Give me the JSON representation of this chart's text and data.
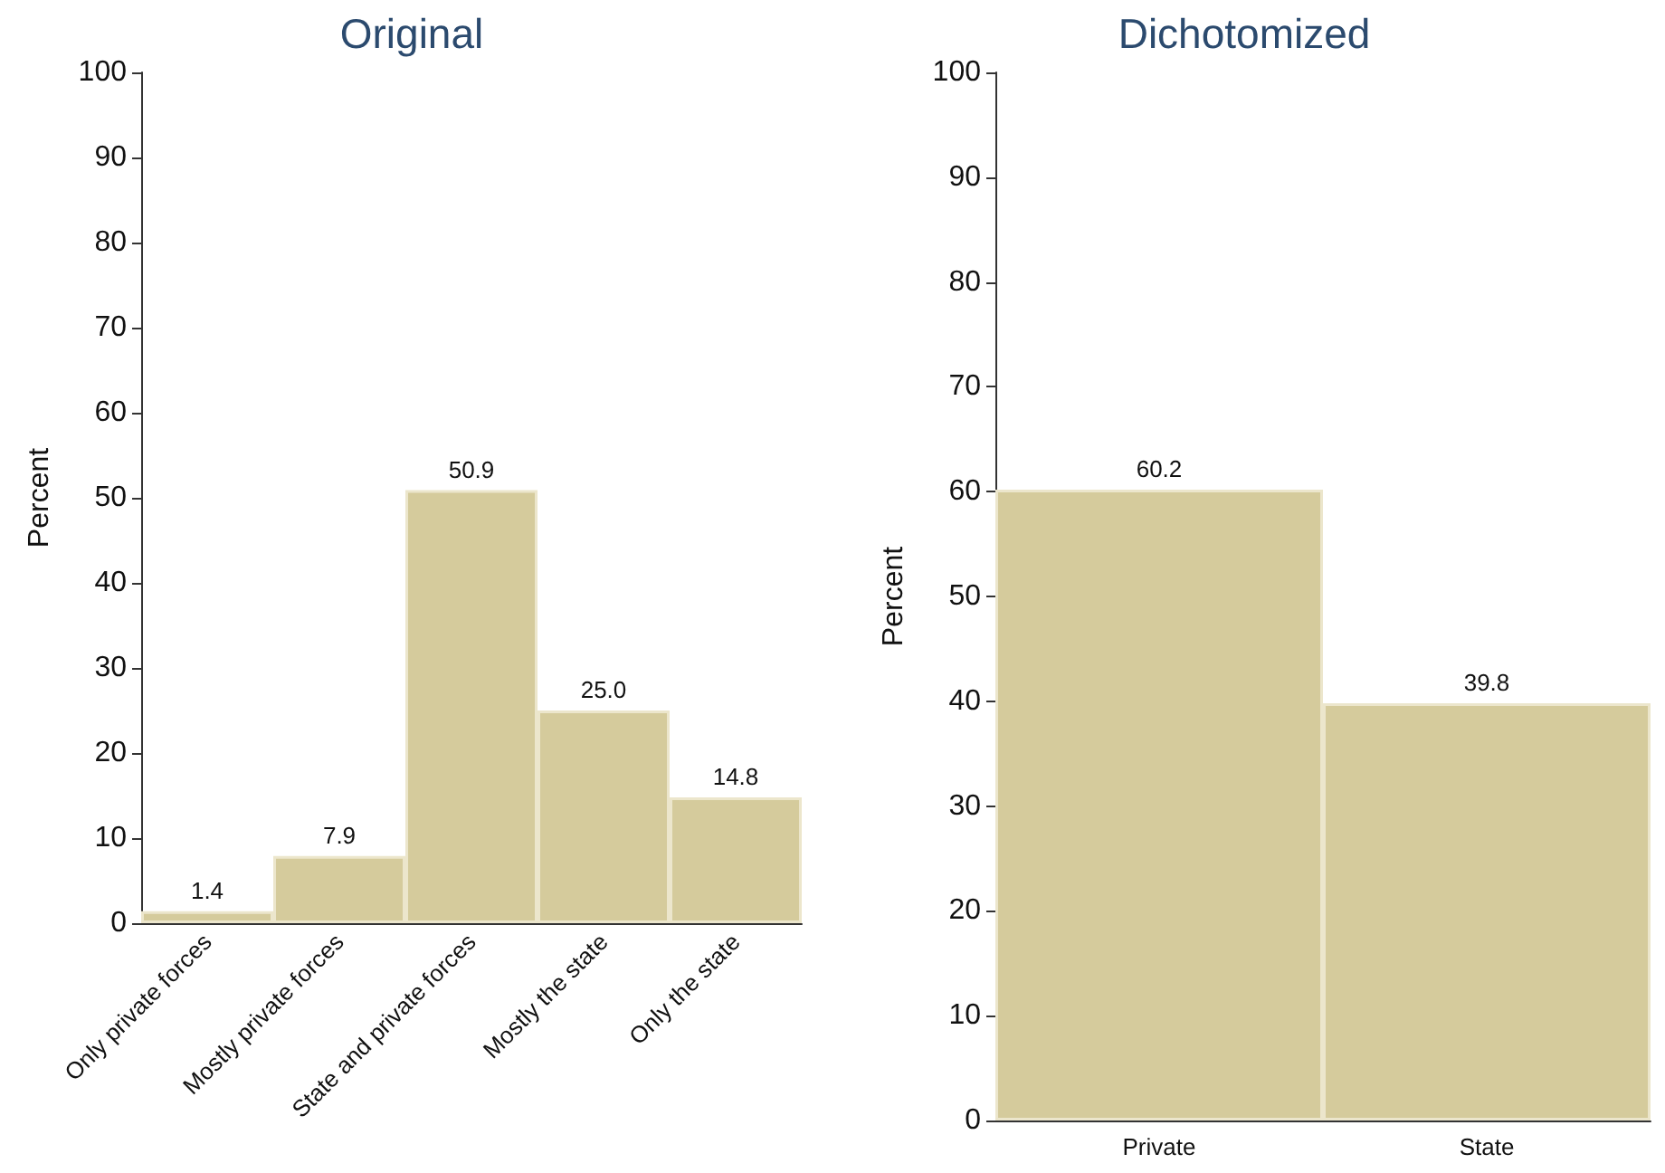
{
  "chart_data": [
    {
      "type": "bar",
      "title": "Original",
      "ylabel": "Percent",
      "categories": [
        "Only private forces",
        "Mostly private forces",
        "State and private forces",
        "Mostly the state",
        "Only the state"
      ],
      "values": [
        1.4,
        7.9,
        50.9,
        25.0,
        14.8
      ],
      "value_labels": [
        "1.4",
        "7.9",
        "50.9",
        "25.0",
        "14.8"
      ],
      "color": "#d5cb9c",
      "ylim": [
        0,
        100
      ],
      "yticks": [
        0,
        10,
        20,
        30,
        40,
        50,
        60,
        70,
        80,
        90,
        100
      ]
    },
    {
      "type": "bar",
      "title": "Dichotomized",
      "ylabel": "Percent",
      "categories": [
        "Private",
        "State"
      ],
      "values": [
        60.2,
        39.8
      ],
      "value_labels": [
        "60.2",
        "39.8"
      ],
      "color": "#d5cb9c",
      "ylim": [
        0,
        100
      ],
      "yticks": [
        0,
        10,
        20,
        30,
        40,
        50,
        60,
        70,
        80,
        90,
        100
      ]
    }
  ]
}
